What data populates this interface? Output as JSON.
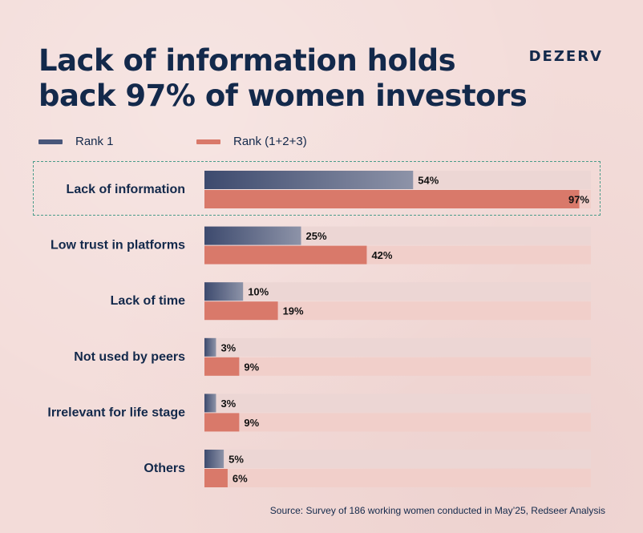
{
  "title_lines": [
    "Lack of information holds",
    "back 97% of women investors"
  ],
  "brand": "DEZERV",
  "legend": [
    {
      "label": "Rank 1",
      "color": "#48567a"
    },
    {
      "label": "Rank (1+2+3)",
      "color": "#d9796a"
    }
  ],
  "colors": {
    "rank1_dark": "#3d4a6e",
    "rank1_light": "#8d93a8",
    "rank123": "#d9796a",
    "track_rank1": "#ecd6d4",
    "track_rank123": "#f1cfca",
    "text": "#13294b",
    "highlight_border": "#4a9c8a"
  },
  "chart_data": {
    "type": "bar",
    "orientation": "horizontal",
    "categories": [
      "Lack of information",
      "Low trust in platforms",
      "Lack of time",
      "Not used by peers",
      "Irrelevant for life stage",
      "Others"
    ],
    "series": [
      {
        "name": "Rank 1",
        "values": [
          54,
          25,
          10,
          3,
          3,
          5
        ]
      },
      {
        "name": "Rank (1+2+3)",
        "values": [
          97,
          42,
          19,
          9,
          9,
          6
        ]
      }
    ],
    "value_suffix": "%",
    "xlim": [
      0,
      100
    ],
    "highlighted_category": "Lack of information",
    "grid": false
  },
  "source": "Source: Survey of 186 working women conducted in May’25, Redseer Analysis"
}
